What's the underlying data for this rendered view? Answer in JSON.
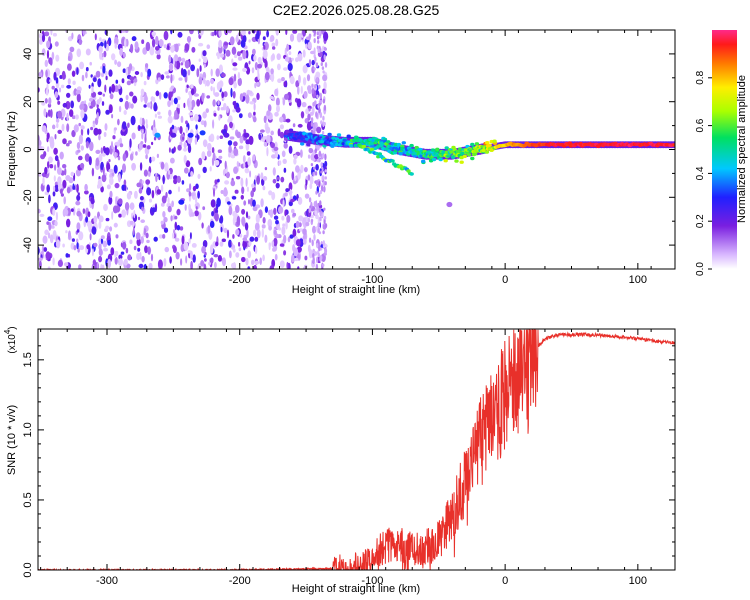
{
  "title": "C2E2.2026.025.08.28.G25",
  "chart_data": [
    {
      "type": "heatmap",
      "name": "spectrogram",
      "xlabel": "Height of straight line (km)",
      "ylabel": "Frequency (Hz)",
      "xlim": [
        -352,
        128
      ],
      "ylim": [
        -50,
        50
      ],
      "xticks": [
        -300,
        -200,
        -100,
        0,
        100
      ],
      "yticks": [
        -40,
        -20,
        0,
        20,
        40
      ],
      "colorbar": {
        "label": "Normalized spectral amplitude",
        "range": [
          0,
          1
        ],
        "ticks": [
          0.0,
          0.2,
          0.4,
          0.6,
          0.8
        ]
      },
      "noise_region_x": [
        -352,
        -135
      ],
      "signal_track": {
        "x": [
          -165,
          -140,
          -120,
          -100,
          -80,
          -60,
          -40,
          -20,
          0,
          20,
          40,
          60,
          80,
          100,
          128
        ],
        "freq": [
          6,
          4,
          3,
          3,
          0,
          -2,
          -2,
          0,
          2,
          2,
          2,
          2,
          2,
          2,
          2
        ],
        "amplitude": [
          0.25,
          0.35,
          0.45,
          0.5,
          0.45,
          0.5,
          0.55,
          0.65,
          0.8,
          0.9,
          0.95,
          0.95,
          0.95,
          0.95,
          0.95
        ]
      }
    },
    {
      "type": "line",
      "name": "snr",
      "xlabel": "Height of straight line (km)",
      "ylabel": "SNR (10 * v/v)",
      "multiplier_label": "(x10",
      "multiplier_exponent": "4",
      "xlim": [
        -352,
        128
      ],
      "ylim": [
        0,
        1.72
      ],
      "xticks": [
        -300,
        -200,
        -100,
        0,
        100
      ],
      "yticks": [
        "0.0",
        "0.5",
        "1.0",
        "1.5"
      ],
      "color": "#e8302a",
      "series": [
        {
          "name": "SNR",
          "x": [
            -352,
            -300,
            -200,
            -130,
            -110,
            -100,
            -90,
            -80,
            -70,
            -60,
            -50,
            -45,
            -40,
            -30,
            -20,
            -10,
            0,
            10,
            20,
            30,
            40,
            60,
            80,
            100,
            128
          ],
          "y": [
            0.0,
            0.0,
            0.0,
            0.01,
            0.04,
            0.1,
            0.17,
            0.18,
            0.14,
            0.16,
            0.22,
            0.3,
            0.4,
            0.65,
            0.88,
            1.05,
            1.23,
            1.4,
            1.55,
            1.65,
            1.68,
            1.68,
            1.67,
            1.65,
            1.62
          ]
        }
      ]
    }
  ]
}
